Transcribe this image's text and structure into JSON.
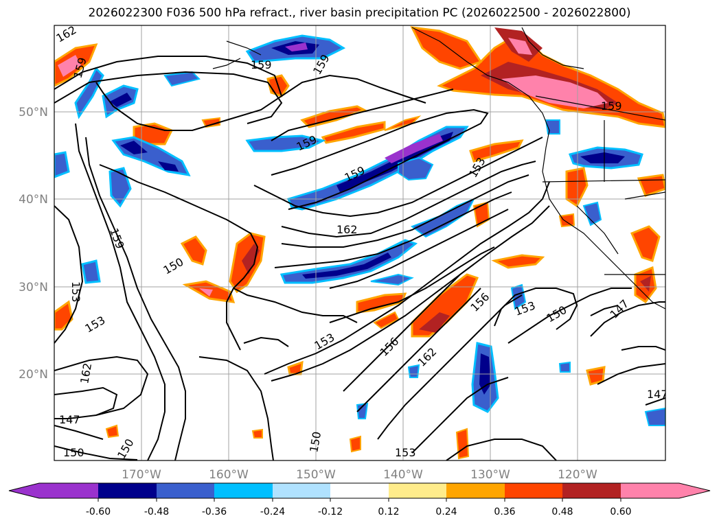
{
  "title": "2026022300 F036 500 hPa refract., river basin precipitation PC (2026022500 - 2026022800)",
  "map": {
    "lon_labels": [
      "170°W",
      "160°W",
      "150°W",
      "140°W",
      "130°W",
      "120°W"
    ],
    "lat_labels": [
      "50°N",
      "40°N",
      "30°N",
      "20°N"
    ],
    "contour_labels": [
      "162",
      "159",
      "159",
      "159",
      "159",
      "159",
      "159",
      "162",
      "150",
      "153",
      "153",
      "159",
      "162",
      "147",
      "150",
      "150",
      "150",
      "153",
      "156",
      "156",
      "162",
      "153",
      "150",
      "147",
      "147",
      "153",
      "153"
    ],
    "colors": {
      "grid": "#a0a0a0",
      "tick_label": "#808080"
    }
  },
  "colorbar": {
    "ticks": [
      "-0.60",
      "-0.48",
      "-0.36",
      "-0.24",
      "-0.12",
      "0.12",
      "0.24",
      "0.36",
      "0.48",
      "0.60"
    ],
    "colors": [
      "#9a32cd",
      "#00008b",
      "#3a5fcd",
      "#00bfff",
      "#b0e2ff",
      "#ffffff",
      "#ffec8b",
      "#ffa500",
      "#ff4500",
      "#b22222",
      "#ff82ab"
    ]
  }
}
